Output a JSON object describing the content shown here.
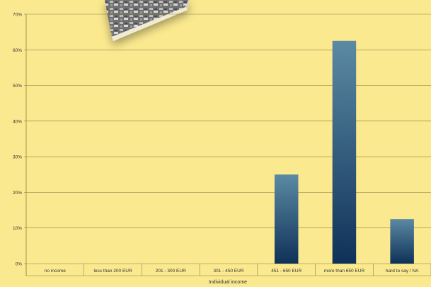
{
  "chart_data": {
    "type": "bar",
    "categories": [
      "no income",
      "less than 200 EUR",
      "201 - 300 EUR",
      "301 - 450 EUR",
      "451 - 650 EUR",
      "more than 650 EUR",
      "hard to say / NA"
    ],
    "values": [
      0,
      0,
      0,
      0,
      25,
      62.5,
      12.5
    ],
    "xlabel": "Individual income",
    "ylabel": "",
    "ylim": [
      0,
      70
    ],
    "yticks": [
      "0%",
      "10%",
      "20%",
      "30%",
      "40%",
      "50%",
      "60%",
      "70%"
    ],
    "grid": true,
    "legend": "none"
  },
  "colors": {
    "background": "#fbe98f",
    "bar_top": "#5b8aa3",
    "bar_bottom": "#0f3158",
    "gridline": "#8c8046",
    "axis": "#8c8046"
  },
  "decoration": {
    "image": "satellite-photo-book-cover"
  }
}
